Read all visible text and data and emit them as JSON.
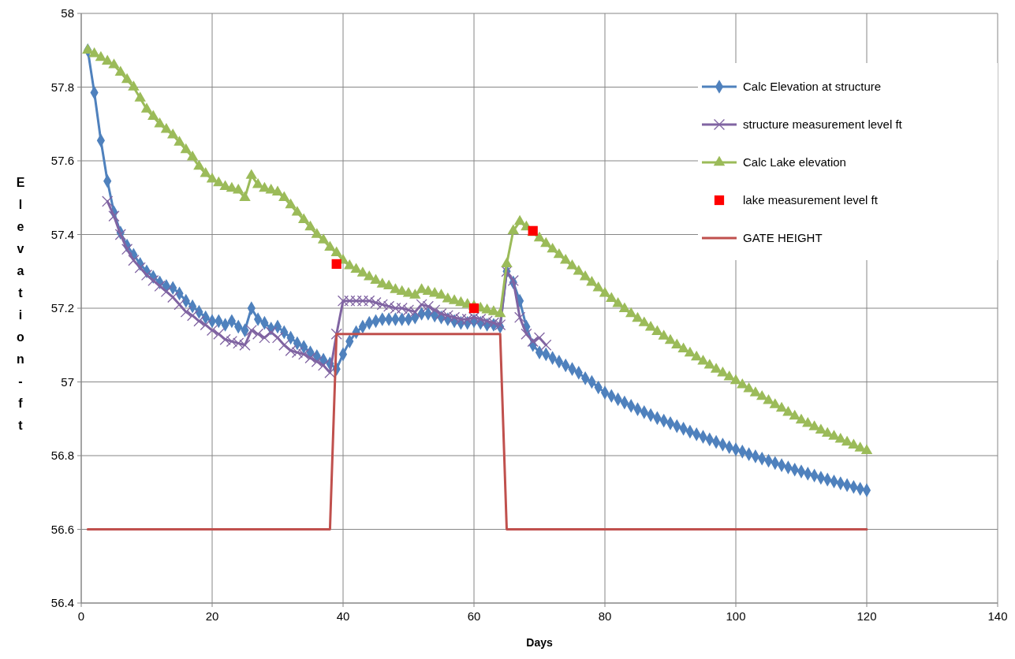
{
  "chart_data": {
    "type": "line",
    "xlabel": "Days",
    "ylabel": "Elevation-ft",
    "x": [
      1,
      2,
      3,
      4,
      5,
      6,
      7,
      8,
      9,
      10,
      11,
      12,
      13,
      14,
      15,
      16,
      17,
      18,
      19,
      20,
      21,
      22,
      23,
      24,
      25,
      26,
      27,
      28,
      29,
      30,
      31,
      32,
      33,
      34,
      35,
      36,
      37,
      38,
      39,
      40,
      41,
      42,
      43,
      44,
      45,
      46,
      47,
      48,
      49,
      50,
      51,
      52,
      53,
      54,
      55,
      56,
      57,
      58,
      59,
      60,
      61,
      62,
      63,
      64,
      65,
      66,
      67,
      68,
      69,
      70,
      71,
      72,
      73,
      74,
      75,
      76,
      77,
      78,
      79,
      80,
      81,
      82,
      83,
      84,
      85,
      86,
      87,
      88,
      89,
      90,
      91,
      92,
      93,
      94,
      95,
      96,
      97,
      98,
      99,
      100,
      101,
      102,
      103,
      104,
      105,
      106,
      107,
      108,
      109,
      110,
      111,
      112,
      113,
      114,
      115,
      116,
      117,
      118,
      119,
      120
    ],
    "xlim": [
      0,
      140
    ],
    "xticks": [
      0,
      20,
      40,
      60,
      80,
      100,
      120,
      140
    ],
    "ylim": [
      56.4,
      58
    ],
    "yticks": [
      56.4,
      56.6,
      56.8,
      57,
      57.2,
      57.4,
      57.6,
      57.8,
      58
    ],
    "grid": true,
    "legend": "top right",
    "series": [
      {
        "name": "Calc Elevation at structure",
        "color": "#4f81bd",
        "marker": "diamond",
        "values": [
          57.9,
          57.785,
          57.655,
          57.545,
          57.46,
          57.405,
          57.37,
          57.345,
          57.32,
          57.3,
          57.285,
          57.27,
          57.26,
          57.255,
          57.24,
          57.22,
          57.205,
          57.19,
          57.175,
          57.165,
          57.165,
          57.155,
          57.165,
          57.15,
          57.14,
          57.2,
          57.17,
          57.16,
          57.145,
          57.15,
          57.135,
          57.12,
          57.105,
          57.095,
          57.08,
          57.07,
          57.06,
          57.05,
          57.035,
          57.075,
          57.11,
          57.135,
          57.15,
          57.16,
          57.165,
          57.17,
          57.17,
          57.17,
          57.17,
          57.17,
          57.175,
          57.185,
          57.185,
          57.18,
          57.175,
          57.17,
          57.165,
          57.16,
          57.16,
          57.165,
          57.16,
          57.155,
          57.155,
          57.15,
          57.3,
          57.27,
          57.22,
          57.15,
          57.1,
          57.08,
          57.075,
          57.065,
          57.055,
          57.045,
          57.035,
          57.025,
          57.01,
          57,
          56.985,
          56.971,
          56.962,
          56.953,
          56.944,
          56.935,
          56.926,
          56.918,
          56.91,
          56.902,
          56.895,
          56.888,
          56.88,
          56.873,
          56.865,
          56.858,
          56.851,
          56.844,
          56.837,
          56.83,
          56.823,
          56.817,
          56.811,
          56.804,
          56.798,
          56.792,
          56.786,
          56.78,
          56.774,
          56.768,
          56.762,
          56.757,
          56.751,
          56.746,
          56.74,
          56.735,
          56.73,
          56.725,
          56.72,
          56.715,
          56.71,
          56.706
        ]
      },
      {
        "name": "structure measurement level ft",
        "color": "#8064a2",
        "marker": "cross",
        "x": [
          4,
          5,
          6,
          7,
          8,
          9,
          10,
          11,
          12,
          13,
          14,
          15,
          16,
          17,
          18,
          19,
          20,
          21,
          22,
          23,
          24,
          25,
          26,
          27,
          28,
          29,
          30,
          31,
          32,
          33,
          34,
          35,
          36,
          37,
          38,
          39,
          40,
          41,
          42,
          43,
          44,
          45,
          46,
          47,
          48,
          49,
          50,
          51,
          52,
          53,
          54,
          55,
          56,
          57,
          58,
          59,
          60,
          61,
          62,
          63,
          64,
          65,
          66,
          67,
          68,
          69,
          70,
          71
        ],
        "values": [
          57.49,
          57.45,
          57.4,
          57.36,
          57.33,
          57.31,
          57.29,
          57.275,
          57.26,
          57.245,
          57.23,
          57.21,
          57.19,
          57.18,
          57.165,
          57.155,
          57.14,
          57.13,
          57.115,
          57.11,
          57.105,
          57.1,
          57.14,
          57.13,
          57.12,
          57.135,
          57.12,
          57.1,
          57.085,
          57.08,
          57.075,
          57.065,
          57.055,
          57.045,
          57.025,
          57.13,
          57.22,
          57.22,
          57.22,
          57.22,
          57.22,
          57.215,
          57.21,
          57.205,
          57.2,
          57.2,
          57.195,
          57.19,
          57.21,
          57.205,
          57.195,
          57.185,
          57.18,
          57.175,
          57.17,
          57.17,
          57.175,
          57.17,
          57.165,
          57.16,
          57.155,
          57.3,
          57.275,
          57.175,
          57.13,
          57.11,
          57.12,
          57.1
        ]
      },
      {
        "name": "Calc Lake elevation",
        "color": "#9bbb59",
        "marker": "triangle",
        "values": [
          57.9,
          57.89,
          57.88,
          57.87,
          57.86,
          57.84,
          57.82,
          57.8,
          57.77,
          57.74,
          57.72,
          57.7,
          57.685,
          57.67,
          57.65,
          57.63,
          57.61,
          57.585,
          57.565,
          57.55,
          57.54,
          57.53,
          57.525,
          57.52,
          57.5,
          57.56,
          57.535,
          57.525,
          57.52,
          57.515,
          57.5,
          57.48,
          57.46,
          57.44,
          57.42,
          57.4,
          57.385,
          57.365,
          57.35,
          57.33,
          57.315,
          57.305,
          57.295,
          57.285,
          57.275,
          57.265,
          57.26,
          57.25,
          57.245,
          57.24,
          57.235,
          57.25,
          57.245,
          57.24,
          57.235,
          57.225,
          57.22,
          57.215,
          57.21,
          57.205,
          57.2,
          57.195,
          57.19,
          57.185,
          57.32,
          57.41,
          57.435,
          57.42,
          57.405,
          57.39,
          57.375,
          57.36,
          57.345,
          57.33,
          57.315,
          57.3,
          57.285,
          57.27,
          57.255,
          57.24,
          57.226,
          57.212,
          57.198,
          57.185,
          57.172,
          57.16,
          57.148,
          57.136,
          57.124,
          57.112,
          57.1,
          57.089,
          57.078,
          57.067,
          57.056,
          57.045,
          57.034,
          57.024,
          57.013,
          57.003,
          56.992,
          56.981,
          56.97,
          56.96,
          56.949,
          56.938,
          56.928,
          56.917,
          56.907,
          56.896,
          56.887,
          56.878,
          56.869,
          56.86,
          56.852,
          56.844,
          56.836,
          56.828,
          56.82,
          56.813
        ]
      },
      {
        "name": "lake measurement level  ft",
        "color": "#ff0000",
        "type": "scatter",
        "marker": "square",
        "x": [
          39,
          60,
          69
        ],
        "values": [
          57.32,
          57.2,
          57.41
        ]
      },
      {
        "name": "GATE HEIGHT",
        "color": "#c0504d",
        "marker": "none",
        "values": [
          56.6,
          56.6,
          56.6,
          56.6,
          56.6,
          56.6,
          56.6,
          56.6,
          56.6,
          56.6,
          56.6,
          56.6,
          56.6,
          56.6,
          56.6,
          56.6,
          56.6,
          56.6,
          56.6,
          56.6,
          56.6,
          56.6,
          56.6,
          56.6,
          56.6,
          56.6,
          56.6,
          56.6,
          56.6,
          56.6,
          56.6,
          56.6,
          56.6,
          56.6,
          56.6,
          56.6,
          56.6,
          56.6,
          57.13,
          57.13,
          57.13,
          57.13,
          57.13,
          57.13,
          57.13,
          57.13,
          57.13,
          57.13,
          57.13,
          57.13,
          57.13,
          57.13,
          57.13,
          57.13,
          57.13,
          57.13,
          57.13,
          57.13,
          57.13,
          57.13,
          57.13,
          57.13,
          57.13,
          57.13,
          56.6,
          56.6,
          56.6,
          56.6,
          56.6,
          56.6,
          56.6,
          56.6,
          56.6,
          56.6,
          56.6,
          56.6,
          56.6,
          56.6,
          56.6,
          56.6,
          56.6,
          56.6,
          56.6,
          56.6,
          56.6,
          56.6,
          56.6,
          56.6,
          56.6,
          56.6,
          56.6,
          56.6,
          56.6,
          56.6,
          56.6,
          56.6,
          56.6,
          56.6,
          56.6,
          56.6,
          56.6,
          56.6,
          56.6,
          56.6,
          56.6,
          56.6,
          56.6,
          56.6,
          56.6,
          56.6,
          56.6,
          56.6,
          56.6,
          56.6,
          56.6,
          56.6,
          56.6,
          56.6,
          56.6,
          56.6
        ]
      }
    ]
  }
}
